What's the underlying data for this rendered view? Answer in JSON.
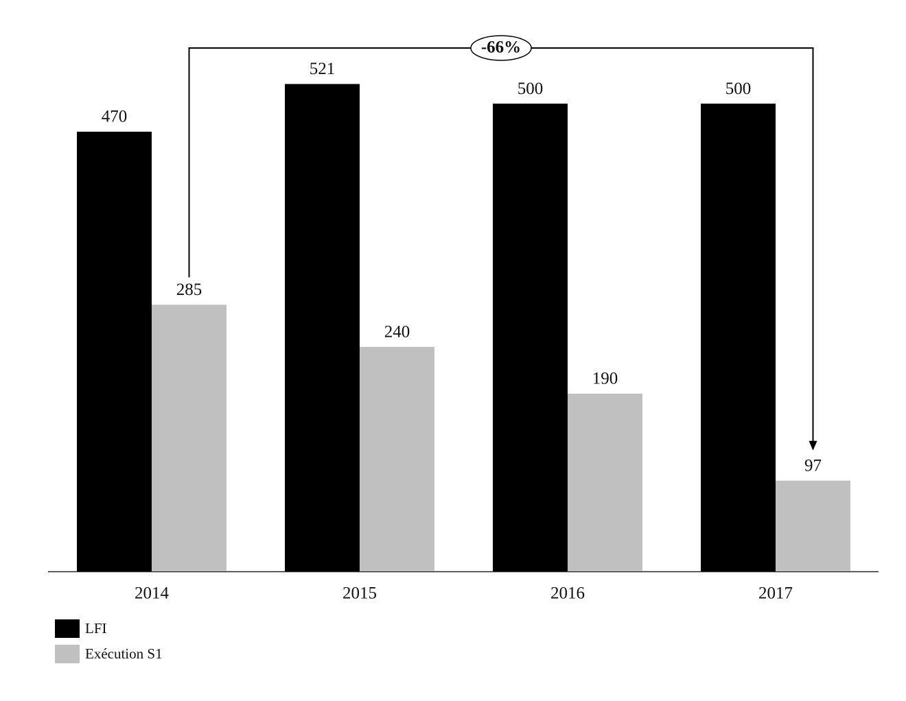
{
  "chart_data": {
    "type": "bar",
    "categories": [
      "2014",
      "2015",
      "2016",
      "2017"
    ],
    "series": [
      {
        "name": "LFI",
        "color": "#000000",
        "values": [
          470,
          521,
          500,
          500
        ]
      },
      {
        "name": "Exécution S1",
        "color": "#c0c0c0",
        "values": [
          285,
          240,
          190,
          97
        ]
      }
    ],
    "annotation": "-66%",
    "legend": "bottom-left"
  }
}
